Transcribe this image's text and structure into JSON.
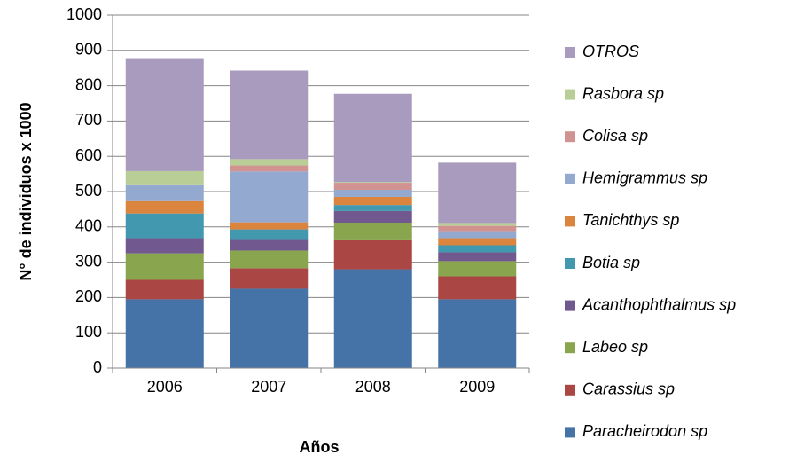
{
  "chart_data": {
    "type": "stacked_bar",
    "x_label": "Años",
    "y_label": "N° de individuos x 1000",
    "categories": [
      "2006",
      "2007",
      "2008",
      "2009"
    ],
    "series": [
      {
        "name": "Paracheirodon sp",
        "color": "#4572a7",
        "values": [
          195,
          225,
          280,
          195
        ]
      },
      {
        "name": "Carassius sp",
        "color": "#aa4643",
        "values": [
          55,
          58,
          82,
          65
        ]
      },
      {
        "name": "Labeo sp",
        "color": "#89a54e",
        "values": [
          75,
          50,
          50,
          43
        ]
      },
      {
        "name": "Acanthophthalmus sp",
        "color": "#71588f",
        "values": [
          43,
          30,
          33,
          25
        ]
      },
      {
        "name": "Botia sp",
        "color": "#4198af",
        "values": [
          70,
          30,
          17,
          20
        ]
      },
      {
        "name": "Tanichthys sp",
        "color": "#db843d",
        "values": [
          35,
          20,
          23,
          20
        ]
      },
      {
        "name": "Hemigrammus  sp",
        "color": "#93a9cf",
        "values": [
          45,
          144,
          20,
          20
        ]
      },
      {
        "name": "Colisa sp",
        "color": "#d19392",
        "values": [
          0,
          17,
          20,
          15
        ]
      },
      {
        "name": "Rasbora sp",
        "color": "#b9cd96",
        "values": [
          40,
          18,
          2,
          8
        ]
      },
      {
        "name": "OTROS",
        "color": "#a99bbd",
        "values": [
          320,
          251,
          250,
          171
        ]
      }
    ],
    "ylim": [
      0,
      1000
    ],
    "yticks": [
      0,
      100,
      200,
      300,
      400,
      500,
      600,
      700,
      800,
      900,
      1000
    ],
    "grid": true,
    "legend": "right"
  }
}
